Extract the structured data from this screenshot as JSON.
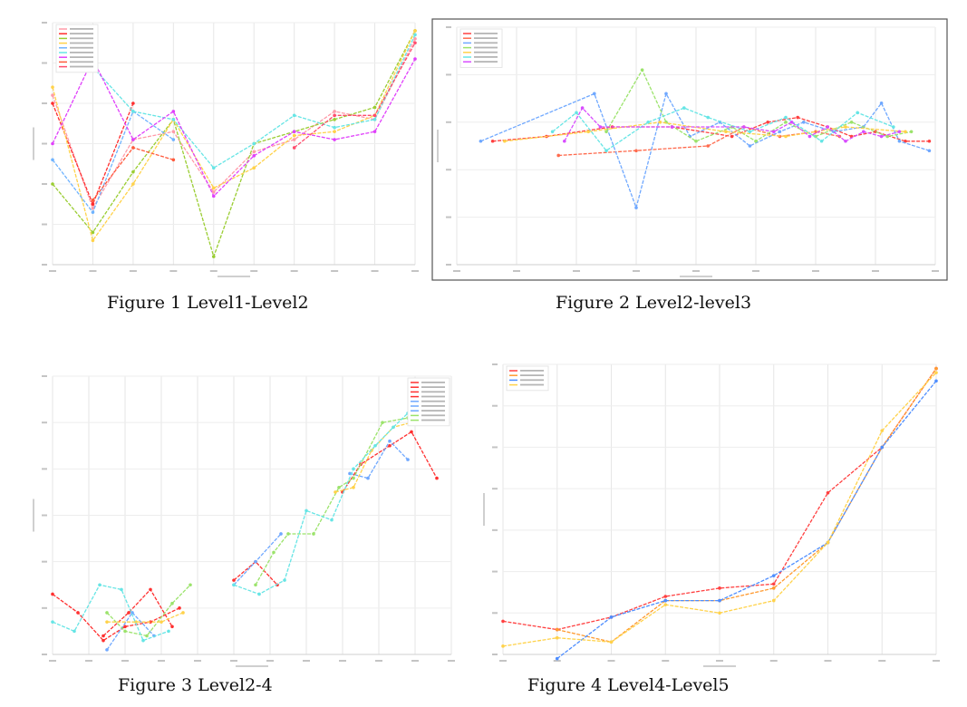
{
  "captions": {
    "fig1": "Figure 1 Level1-Level2",
    "fig2": "Figure 2 Level2-level3",
    "fig3": "Figure 3 Level2-4",
    "fig4": "Figure 4 Level4-Level5"
  },
  "chart_data": [
    {
      "id": "p1",
      "type": "line",
      "frame": false,
      "xlim": [
        0,
        9
      ],
      "ylim": [
        0,
        6
      ],
      "grid": true,
      "legend": "top-left",
      "series": [
        {
          "color": "#ff9aa8",
          "points": [
            [
              0,
              4.2
            ],
            [
              1,
              1.4
            ],
            [
              2,
              3.1
            ],
            [
              3,
              3.3
            ],
            [
              4,
              1.8
            ],
            [
              5,
              2.8
            ],
            [
              6,
              3.1
            ],
            [
              7,
              3.8
            ],
            [
              8,
              3.6
            ],
            [
              9,
              5.6
            ]
          ]
        },
        {
          "color": "#ff2d2d",
          "points": [
            [
              0,
              4.0
            ],
            [
              1,
              1.5
            ],
            [
              2,
              4.0
            ]
          ]
        },
        {
          "color": "#9acd32",
          "points": [
            [
              0,
              2.0
            ],
            [
              1,
              0.8
            ],
            [
              2,
              2.3
            ],
            [
              3,
              3.6
            ],
            [
              4,
              0.2
            ],
            [
              5,
              3.0
            ],
            [
              6,
              3.3
            ],
            [
              7,
              3.6
            ],
            [
              8,
              3.9
            ],
            [
              9,
              5.8
            ]
          ]
        },
        {
          "color": "#ffd24a",
          "points": [
            [
              0,
              4.4
            ],
            [
              1,
              0.6
            ],
            [
              2,
              2.0
            ],
            [
              3,
              3.6
            ],
            [
              4,
              1.9
            ],
            [
              5,
              2.4
            ],
            [
              6,
              3.2
            ],
            [
              7,
              3.3
            ],
            [
              8,
              3.7
            ],
            [
              9,
              5.8
            ]
          ]
        },
        {
          "color": "#6fb3ff",
          "points": [
            [
              0,
              2.6
            ],
            [
              1,
              1.3
            ],
            [
              2,
              3.8
            ],
            [
              3,
              3.1
            ]
          ]
        },
        {
          "color": "#66e5e5",
          "points": [
            [
              1,
              4.9
            ],
            [
              2,
              3.8
            ],
            [
              3,
              3.6
            ],
            [
              4,
              2.4
            ],
            [
              5,
              3.0
            ],
            [
              6,
              3.7
            ],
            [
              7,
              3.4
            ],
            [
              8,
              3.6
            ],
            [
              9,
              5.7
            ]
          ]
        },
        {
          "color": "#e040fb",
          "points": [
            [
              0,
              3.0
            ],
            [
              1,
              5.1
            ],
            [
              2,
              3.1
            ],
            [
              3,
              3.8
            ],
            [
              4,
              1.7
            ],
            [
              5,
              2.7
            ],
            [
              6,
              3.3
            ],
            [
              7,
              3.1
            ],
            [
              8,
              3.3
            ],
            [
              9,
              5.1
            ]
          ]
        },
        {
          "color": "#ff5a3c",
          "points": [
            [
              1,
              1.6
            ],
            [
              2,
              2.9
            ],
            [
              3,
              2.6
            ]
          ]
        },
        {
          "color": "#ff4d6d",
          "points": [
            [
              6,
              2.9
            ],
            [
              7,
              3.7
            ],
            [
              8,
              3.7
            ],
            [
              9,
              5.5
            ]
          ]
        }
      ]
    },
    {
      "id": "p2",
      "type": "line",
      "frame": true,
      "xlim": [
        0,
        8
      ],
      "ylim": [
        0,
        5
      ],
      "grid": true,
      "legend": "top-left",
      "series": [
        {
          "color": "#ff4040",
          "points": [
            [
              0.6,
              2.6
            ],
            [
              1.5,
              2.7
            ],
            [
              2.6,
              2.9
            ],
            [
              3.6,
              2.9
            ],
            [
              4.6,
              2.7
            ],
            [
              5.2,
              3.0
            ],
            [
              5.7,
              3.1
            ],
            [
              6.2,
              2.9
            ],
            [
              6.6,
              2.7
            ],
            [
              7.0,
              2.8
            ],
            [
              7.5,
              2.6
            ],
            [
              7.9,
              2.6
            ]
          ]
        },
        {
          "color": "#ff6a4d",
          "points": [
            [
              1.7,
              2.3
            ],
            [
              3.0,
              2.4
            ],
            [
              4.2,
              2.5
            ],
            [
              4.8,
              2.9
            ],
            [
              5.4,
              2.7
            ],
            [
              6.0,
              2.8
            ],
            [
              6.4,
              2.7
            ]
          ]
        },
        {
          "color": "#6fa8ff",
          "points": [
            [
              0.4,
              2.6
            ],
            [
              2.3,
              3.6
            ],
            [
              3.0,
              1.2
            ],
            [
              3.5,
              3.6
            ],
            [
              3.9,
              2.7
            ],
            [
              4.4,
              3.0
            ],
            [
              4.9,
              2.5
            ],
            [
              5.4,
              2.8
            ],
            [
              5.8,
              3.0
            ],
            [
              6.3,
              2.8
            ],
            [
              6.8,
              2.9
            ],
            [
              7.1,
              3.4
            ],
            [
              7.4,
              2.6
            ],
            [
              7.9,
              2.4
            ]
          ]
        },
        {
          "color": "#9be36b",
          "points": [
            [
              2.5,
              2.8
            ],
            [
              3.1,
              4.1
            ],
            [
              3.5,
              3.0
            ],
            [
              4.0,
              2.6
            ],
            [
              4.6,
              2.9
            ],
            [
              5.0,
              2.6
            ],
            [
              5.5,
              3.0
            ],
            [
              6.0,
              2.7
            ],
            [
              6.6,
              3.0
            ],
            [
              7.2,
              2.7
            ],
            [
              7.6,
              2.8
            ]
          ]
        },
        {
          "color": "#ffd24a",
          "points": [
            [
              0.8,
              2.6
            ],
            [
              2.2,
              2.8
            ],
            [
              3.4,
              3.0
            ],
            [
              4.5,
              2.8
            ],
            [
              5.5,
              2.7
            ],
            [
              6.5,
              2.9
            ],
            [
              7.5,
              2.8
            ]
          ]
        },
        {
          "color": "#66e5e5",
          "points": [
            [
              1.6,
              2.8
            ],
            [
              2.0,
              3.2
            ],
            [
              2.5,
              2.4
            ],
            [
              3.2,
              3.0
            ],
            [
              3.8,
              3.3
            ],
            [
              4.2,
              3.1
            ],
            [
              4.9,
              2.8
            ],
            [
              5.5,
              3.1
            ],
            [
              6.1,
              2.6
            ],
            [
              6.7,
              3.2
            ],
            [
              7.3,
              2.9
            ]
          ]
        },
        {
          "color": "#d84dff",
          "points": [
            [
              1.8,
              2.6
            ],
            [
              2.1,
              3.3
            ],
            [
              2.4,
              2.9
            ],
            [
              3.6,
              2.9
            ],
            [
              4.8,
              2.9
            ],
            [
              5.3,
              2.8
            ],
            [
              5.6,
              3.0
            ],
            [
              5.9,
              2.7
            ],
            [
              6.2,
              2.9
            ],
            [
              6.5,
              2.6
            ],
            [
              6.8,
              2.8
            ],
            [
              7.1,
              2.7
            ],
            [
              7.4,
              2.8
            ]
          ]
        }
      ]
    },
    {
      "id": "p3",
      "type": "line",
      "frame": false,
      "xlim": [
        0,
        11
      ],
      "ylim": [
        0,
        6
      ],
      "grid": true,
      "legend": "top-right",
      "series": [
        {
          "color": "#ff3030",
          "points": [
            [
              0,
              1.3
            ],
            [
              0.7,
              0.9
            ],
            [
              1.4,
              0.3
            ],
            [
              2.0,
              0.6
            ],
            [
              2.7,
              0.7
            ],
            [
              3.5,
              1.0
            ]
          ]
        },
        {
          "color": "#ff3030",
          "points": [
            [
              1.4,
              0.4
            ],
            [
              2.1,
              0.9
            ],
            [
              2.7,
              1.4
            ],
            [
              3.3,
              0.6
            ]
          ]
        },
        {
          "color": "#ff3030",
          "points": [
            [
              5.0,
              1.6
            ],
            [
              5.6,
              2.0
            ],
            [
              6.2,
              1.5
            ]
          ]
        },
        {
          "color": "#ff3030",
          "points": [
            [
              8.0,
              3.5
            ],
            [
              8.5,
              4.1
            ],
            [
              9.3,
              4.5
            ],
            [
              9.9,
              4.8
            ],
            [
              10.6,
              3.8
            ]
          ]
        },
        {
          "color": "#6fa8ff",
          "points": [
            [
              1.5,
              0.1
            ],
            [
              2.2,
              0.9
            ],
            [
              2.8,
              0.4
            ]
          ]
        },
        {
          "color": "#6fa8ff",
          "points": [
            [
              5.0,
              1.5
            ],
            [
              5.6,
              2.0
            ],
            [
              6.3,
              2.6
            ]
          ]
        },
        {
          "color": "#6fa8ff",
          "points": [
            [
              8.2,
              3.9
            ],
            [
              8.7,
              3.8
            ],
            [
              9.3,
              4.6
            ],
            [
              9.8,
              4.2
            ]
          ]
        },
        {
          "color": "#9be36b",
          "points": [
            [
              1.5,
              0.9
            ],
            [
              2.0,
              0.5
            ],
            [
              2.6,
              0.4
            ],
            [
              3.3,
              1.1
            ],
            [
              3.8,
              1.5
            ]
          ]
        },
        {
          "color": "#9be36b",
          "points": [
            [
              5.6,
              1.5
            ],
            [
              6.1,
              2.2
            ],
            [
              6.5,
              2.6
            ],
            [
              7.2,
              2.6
            ],
            [
              7.9,
              3.6
            ],
            [
              8.3,
              3.8
            ],
            [
              9.1,
              5.0
            ],
            [
              9.8,
              5.1
            ]
          ]
        },
        {
          "color": "#ffd24a",
          "points": [
            [
              1.5,
              0.7
            ],
            [
              2.3,
              0.7
            ],
            [
              3.0,
              0.7
            ],
            [
              3.6,
              0.9
            ]
          ]
        },
        {
          "color": "#ffd24a",
          "points": [
            [
              7.8,
              3.5
            ],
            [
              8.3,
              3.6
            ],
            [
              8.8,
              4.4
            ],
            [
              9.4,
              4.9
            ],
            [
              9.9,
              5.0
            ]
          ]
        },
        {
          "color": "#66e5e5",
          "points": [
            [
              0,
              0.7
            ],
            [
              0.6,
              0.5
            ],
            [
              1.3,
              1.5
            ],
            [
              1.9,
              1.4
            ],
            [
              2.5,
              0.3
            ],
            [
              3.2,
              0.5
            ]
          ]
        },
        {
          "color": "#66e5e5",
          "points": [
            [
              5.0,
              1.5
            ],
            [
              5.7,
              1.3
            ],
            [
              6.4,
              1.6
            ],
            [
              7.0,
              3.1
            ],
            [
              7.7,
              2.9
            ],
            [
              8.3,
              4.0
            ],
            [
              8.9,
              4.5
            ],
            [
              9.4,
              4.9
            ],
            [
              9.8,
              5.2
            ]
          ]
        }
      ]
    },
    {
      "id": "p4",
      "type": "line",
      "frame": false,
      "xlim": [
        0,
        8
      ],
      "ylim": [
        0,
        7
      ],
      "grid": true,
      "legend": "top-left",
      "series": [
        {
          "color": "#ff4040",
          "points": [
            [
              0,
              0.8
            ],
            [
              1,
              0.6
            ],
            [
              2,
              0.9
            ],
            [
              3,
              1.4
            ],
            [
              4,
              1.6
            ],
            [
              5,
              1.7
            ],
            [
              6,
              3.9
            ],
            [
              7,
              5.0
            ],
            [
              8,
              6.9
            ]
          ]
        },
        {
          "color": "#ff9a30",
          "points": [
            [
              1,
              0.6
            ],
            [
              2,
              0.3
            ],
            [
              3,
              1.3
            ],
            [
              4,
              1.3
            ],
            [
              5,
              1.6
            ],
            [
              6,
              2.7
            ],
            [
              7,
              5.0
            ],
            [
              8,
              6.9
            ]
          ]
        },
        {
          "color": "#4d8dff",
          "points": [
            [
              1,
              -0.1
            ],
            [
              2,
              0.9
            ],
            [
              3,
              1.3
            ],
            [
              4,
              1.3
            ],
            [
              5,
              1.9
            ],
            [
              6,
              2.7
            ],
            [
              7,
              5.0
            ],
            [
              8,
              6.6
            ]
          ]
        },
        {
          "color": "#ffd24a",
          "points": [
            [
              0,
              0.2
            ],
            [
              1,
              0.4
            ],
            [
              2,
              0.3
            ],
            [
              3,
              1.2
            ],
            [
              4,
              1.0
            ],
            [
              5,
              1.3
            ],
            [
              6,
              2.7
            ],
            [
              7,
              5.4
            ],
            [
              8,
              6.8
            ]
          ]
        }
      ]
    }
  ]
}
